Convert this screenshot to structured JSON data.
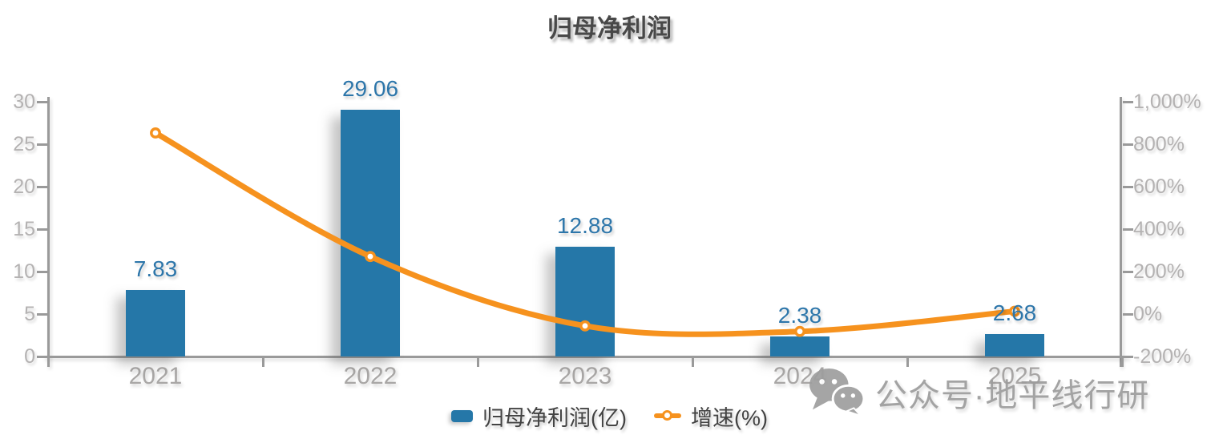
{
  "chart_data": {
    "type": "bar+line",
    "title": "归母净利润",
    "categories": [
      "2021",
      "2022",
      "2023",
      "2024",
      "2025"
    ],
    "series": [
      {
        "name": "归母净利润(亿)",
        "type": "bar",
        "axis": "left",
        "color": "#2577a8",
        "values": [
          7.83,
          29.06,
          12.88,
          2.38,
          2.68
        ],
        "labels": [
          "7.83",
          "29.06",
          "12.88",
          "2.38",
          "2.68"
        ]
      },
      {
        "name": "增速(%)",
        "type": "line",
        "axis": "right",
        "color": "#f6921e",
        "marker": "hollow-circle",
        "values": [
          853,
          271,
          -56,
          -82,
          13
        ]
      }
    ],
    "left_axis": {
      "range": [
        0,
        30
      ],
      "ticks": [
        "0",
        "5",
        "10",
        "15",
        "20",
        "25",
        "30"
      ]
    },
    "right_axis": {
      "range": [
        -200,
        1000
      ],
      "ticks": [
        "-200%",
        "0%",
        "200%",
        "400%",
        "600%",
        "800%",
        "1,000%"
      ]
    },
    "grid": false,
    "legend_position": "bottom"
  },
  "colors": {
    "bar": "#2577a8",
    "line": "#f6921e",
    "bar_value_label": "#2d76aa",
    "axis_line": "#9a9a9a",
    "axis_text": "#b4b2b2",
    "title_text": "#484848",
    "watermark": "#9c9c9c"
  },
  "watermark": {
    "icon": "wechat-icon",
    "text": "公众号·地平线行研"
  }
}
